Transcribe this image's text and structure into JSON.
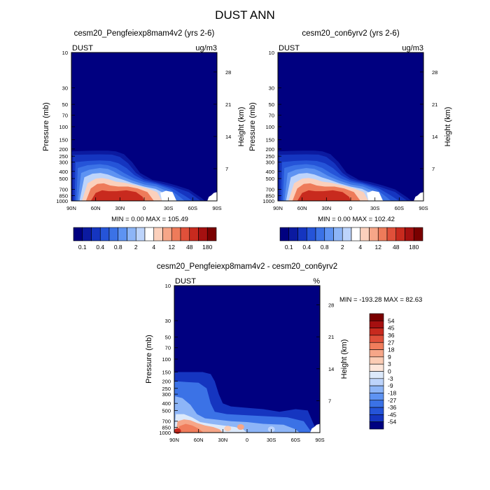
{
  "figure_title": "DUST ANN",
  "chart_data": [
    {
      "type": "heatmap",
      "subtitle": "cesm20_Pengfeiexp8mam4v2 (yrs 2-6)",
      "variable_label": "DUST",
      "units_label": "ug/m3",
      "xlabel": "",
      "ylabel": "Pressure (mb)",
      "y2label": "Height (km)",
      "x_ticks": [
        "90N",
        "60N",
        "30N",
        "0",
        "30S",
        "60S",
        "90S"
      ],
      "x_values": [
        90,
        60,
        30,
        0,
        -30,
        -60,
        -90
      ],
      "y_ticks": [
        10,
        30,
        50,
        70,
        100,
        150,
        200,
        250,
        300,
        400,
        500,
        700,
        850,
        1000
      ],
      "y2_ticks": [
        28,
        21,
        14,
        7
      ],
      "ylim": [
        10,
        1000
      ],
      "stats_text": "MIN =   0.00  MAX = 105.49",
      "min": 0.0,
      "max": 105.49,
      "colorbar_labels": [
        "0.1",
        "0.4",
        "0.8",
        "2",
        "4",
        "12",
        "48",
        "180"
      ],
      "colorbar_levels": [
        0.1,
        0.2,
        0.4,
        0.6,
        0.8,
        1,
        2,
        3,
        4,
        8,
        12,
        24,
        48,
        96,
        180
      ]
    },
    {
      "type": "heatmap",
      "subtitle": "cesm20_con6yrv2 (yrs 2-6)",
      "variable_label": "DUST",
      "units_label": "ug/m3",
      "xlabel": "",
      "ylabel": "Pressure (mb)",
      "y2label": "Height (km)",
      "x_ticks": [
        "90N",
        "60N",
        "30N",
        "0",
        "30S",
        "60S",
        "90S"
      ],
      "x_values": [
        90,
        60,
        30,
        0,
        -30,
        -60,
        -90
      ],
      "y_ticks": [
        10,
        30,
        50,
        70,
        100,
        150,
        200,
        250,
        300,
        400,
        500,
        700,
        850,
        1000
      ],
      "y2_ticks": [
        28,
        21,
        14,
        7
      ],
      "ylim": [
        10,
        1000
      ],
      "stats_text": "MIN =   0.00  MAX = 102.42",
      "min": 0.0,
      "max": 102.42,
      "colorbar_labels": [
        "0.1",
        "0.4",
        "0.8",
        "2",
        "4",
        "12",
        "48",
        "180"
      ],
      "colorbar_levels": [
        0.1,
        0.2,
        0.4,
        0.6,
        0.8,
        1,
        2,
        3,
        4,
        8,
        12,
        24,
        48,
        96,
        180
      ]
    },
    {
      "type": "heatmap",
      "subtitle": "cesm20_Pengfeiexp8mam4v2 - cesm20_con6yrv2",
      "variable_label": "DUST",
      "units_label": "%",
      "xlabel": "",
      "ylabel": "Pressure (mb)",
      "y2label": "Height (km)",
      "x_ticks": [
        "90N",
        "60N",
        "30N",
        "0",
        "30S",
        "60S",
        "90S"
      ],
      "x_values": [
        90,
        60,
        30,
        0,
        -30,
        -60,
        -90
      ],
      "y_ticks": [
        10,
        30,
        50,
        70,
        100,
        150,
        200,
        250,
        300,
        400,
        500,
        700,
        850,
        1000
      ],
      "y2_ticks": [
        28,
        21,
        14,
        7
      ],
      "ylim": [
        10,
        1000
      ],
      "stats_text": "MIN = -193.28  MAX =  82.63",
      "min": -193.28,
      "max": 82.63,
      "colorbar_labels": [
        "54",
        "45",
        "36",
        "27",
        "18",
        "9",
        "3",
        "0",
        "-3",
        "-9",
        "-18",
        "-27",
        "-36",
        "-45",
        "-54"
      ],
      "colorbar_levels": [
        54,
        45,
        36,
        27,
        18,
        9,
        3,
        0,
        -3,
        -9,
        -18,
        -27,
        -36,
        -45,
        -54
      ]
    }
  ],
  "colors": {
    "abs_palette": [
      "#000080",
      "#0b1aa0",
      "#1535c0",
      "#2554d8",
      "#3b72e6",
      "#5e93f2",
      "#8db5f7",
      "#bdd4fb",
      "#ffffff",
      "#fbd0bc",
      "#f6a688",
      "#ee7b5a",
      "#e0503a",
      "#c82a1e",
      "#a51010",
      "#7a0000"
    ],
    "diff_palette": [
      "#7a0000",
      "#a51010",
      "#c82a1e",
      "#e0503a",
      "#f07d5c",
      "#f6a688",
      "#fbccb4",
      "#fde6da",
      "#dce9fb",
      "#bdd4fb",
      "#8db5f7",
      "#5e93f2",
      "#3b72e6",
      "#2554d8",
      "#1535c0",
      "#000080"
    ],
    "background_field": "#000080"
  }
}
